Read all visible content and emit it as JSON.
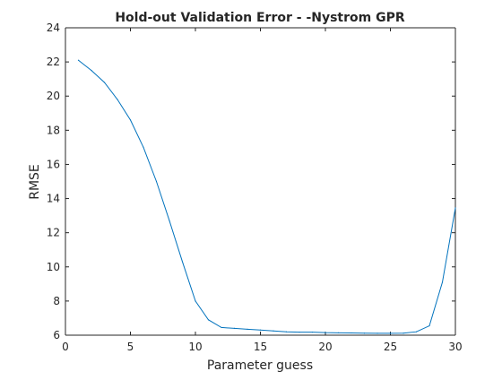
{
  "chart_data": {
    "type": "line",
    "title": "Hold-out Validation Error - -Nystrom GPR",
    "xlabel": "Parameter guess",
    "ylabel": "RMSE",
    "xlim": [
      0,
      30
    ],
    "ylim": [
      6,
      24
    ],
    "xticks": [
      0,
      5,
      10,
      15,
      20,
      25,
      30
    ],
    "yticks": [
      6,
      8,
      10,
      12,
      14,
      16,
      18,
      20,
      22,
      24
    ],
    "grid": false,
    "line_color": "#0072BD",
    "axis_color": "#262626",
    "series": [
      {
        "x": [
          1,
          2,
          3,
          4,
          5,
          6,
          7,
          8,
          9,
          10,
          11,
          12,
          13,
          14,
          15,
          16,
          17,
          18,
          19,
          20,
          21,
          22,
          23,
          24,
          25,
          26,
          27,
          28,
          29,
          30
        ],
        "values": [
          22.1,
          21.5,
          20.8,
          19.8,
          18.6,
          17.0,
          15.0,
          12.7,
          10.3,
          8.0,
          6.9,
          6.45,
          6.4,
          6.35,
          6.3,
          6.25,
          6.2,
          6.18,
          6.18,
          6.15,
          6.14,
          6.13,
          6.12,
          6.11,
          6.11,
          6.12,
          6.2,
          6.55,
          9.1,
          13.45
        ]
      }
    ]
  }
}
